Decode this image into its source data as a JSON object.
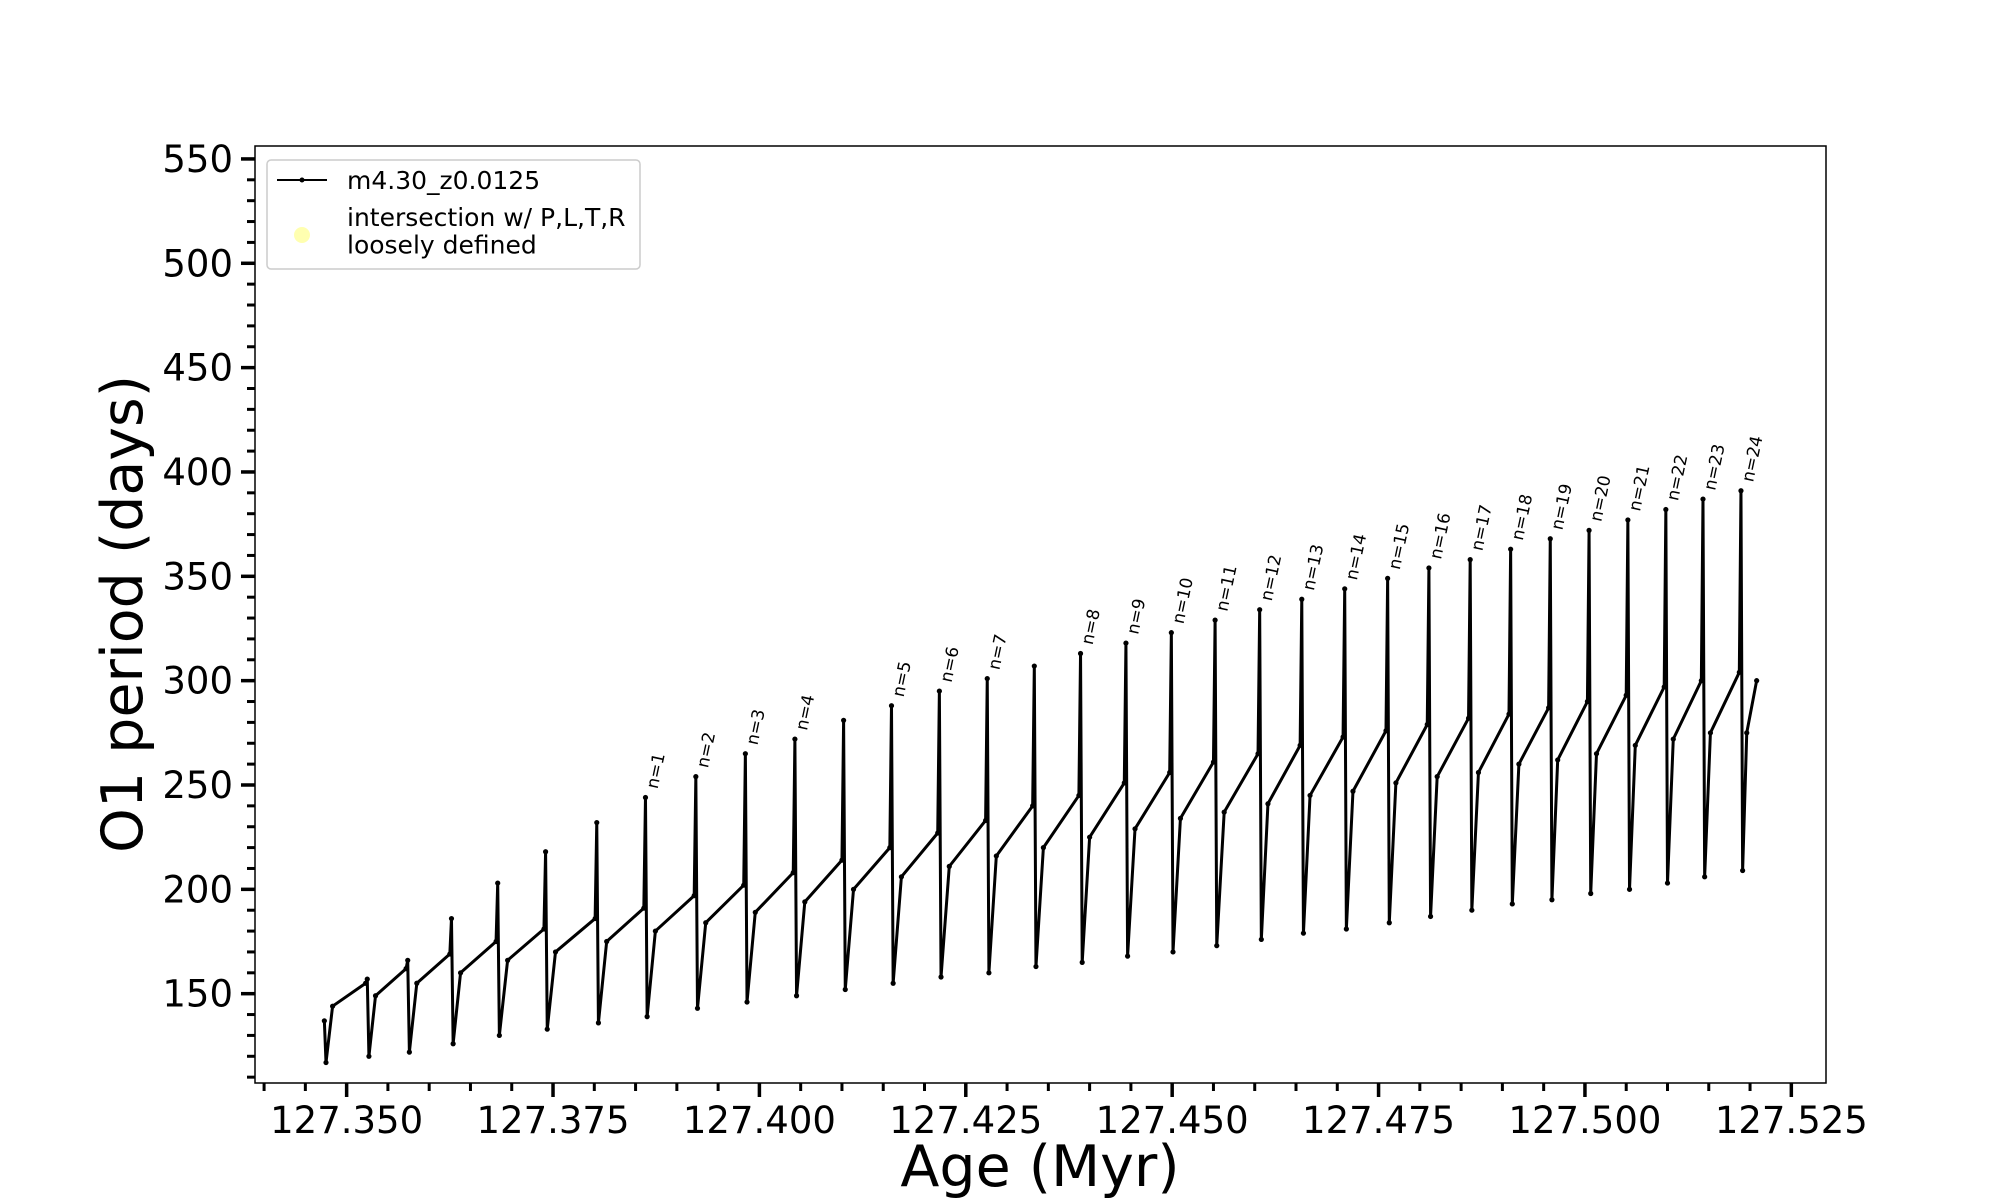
{
  "chart_data": {
    "type": "line",
    "xlabel": "Age (Myr)",
    "ylabel": "O1 period (days)",
    "xlim": [
      127.3389,
      127.5292
    ],
    "ylim": [
      107.2,
      556.2
    ],
    "xticks": [
      {
        "value": 127.35,
        "label": "127.350"
      },
      {
        "value": 127.375,
        "label": "127.375"
      },
      {
        "value": 127.4,
        "label": "127.400"
      },
      {
        "value": 127.425,
        "label": "127.425"
      },
      {
        "value": 127.45,
        "label": "127.450"
      },
      {
        "value": 127.475,
        "label": "127.475"
      },
      {
        "value": 127.5,
        "label": "127.500"
      },
      {
        "value": 127.525,
        "label": "127.525"
      }
    ],
    "yticks": [
      150,
      200,
      250,
      300,
      350,
      400,
      450,
      500,
      550
    ],
    "xminorticks": [
      127.34,
      127.345,
      127.355,
      127.36,
      127.365,
      127.37,
      127.38,
      127.385,
      127.39,
      127.395,
      127.405,
      127.41,
      127.415,
      127.42,
      127.43,
      127.435,
      127.44,
      127.445,
      127.455,
      127.46,
      127.465,
      127.47,
      127.48,
      127.485,
      127.49,
      127.495,
      127.505,
      127.51,
      127.515,
      127.52
    ],
    "yminorticks": [
      110,
      120,
      130,
      140,
      160,
      170,
      180,
      190,
      210,
      220,
      230,
      240,
      260,
      270,
      280,
      290,
      310,
      320,
      330,
      340,
      360,
      370,
      380,
      390,
      410,
      420,
      430,
      440,
      460,
      470,
      480,
      490,
      510,
      520,
      530,
      540
    ],
    "legend": "upper left",
    "series": [
      {
        "name": "m4.30_z0.0125",
        "color": "#000000",
        "marker": true,
        "x": [
          127.3473,
          127.3475,
          127.3483,
          127.3523,
          127.3525,
          127.3527,
          127.3535,
          127.3572,
          127.3574,
          127.3576,
          127.3585,
          127.3625,
          127.3627,
          127.3629,
          127.3638,
          127.3681,
          127.3683,
          127.3685,
          127.3695,
          127.3739,
          127.3741,
          127.3743,
          127.3753,
          127.3801,
          127.3803,
          127.3805,
          127.3815,
          127.386,
          127.3862,
          127.3864,
          127.3874,
          127.3921,
          127.3923,
          127.3925,
          127.3935,
          127.3981,
          127.3983,
          127.3985,
          127.3995,
          127.4041,
          127.4043,
          127.4045,
          127.4055,
          127.41,
          127.4102,
          127.4104,
          127.4114,
          127.4158,
          127.416,
          127.4162,
          127.4172,
          127.4216,
          127.4218,
          127.422,
          127.423,
          127.4274,
          127.4276,
          127.4278,
          127.4287,
          127.4331,
          127.4333,
          127.4335,
          127.4344,
          127.4387,
          127.4389,
          127.4391,
          127.44,
          127.4442,
          127.4444,
          127.4446,
          127.4455,
          127.4497,
          127.4499,
          127.4501,
          127.451,
          127.455,
          127.4552,
          127.4554,
          127.4563,
          127.4604,
          127.4606,
          127.4608,
          127.4616,
          127.4655,
          127.4657,
          127.4659,
          127.4667,
          127.4707,
          127.4709,
          127.4711,
          127.4719,
          127.4759,
          127.4761,
          127.4763,
          127.4771,
          127.4809,
          127.4811,
          127.4813,
          127.4821,
          127.4859,
          127.4861,
          127.4863,
          127.4871,
          127.4908,
          127.491,
          127.4912,
          127.492,
          127.4956,
          127.4958,
          127.496,
          127.4967,
          127.5003,
          127.5005,
          127.5007,
          127.5014,
          127.505,
          127.5052,
          127.5054,
          127.5061,
          127.5096,
          127.5098,
          127.51,
          127.5107,
          127.5141,
          127.5143,
          127.5145,
          127.5152,
          127.5187,
          127.5189,
          127.5191,
          127.5196,
          127.5208
        ],
        "values": [
          137,
          117,
          144,
          155,
          157,
          120,
          149,
          162,
          166,
          122,
          155,
          169,
          186,
          126,
          160,
          175,
          203,
          130,
          166,
          181,
          218,
          133,
          170,
          186,
          232,
          136,
          175,
          191,
          244,
          139,
          180,
          197,
          254,
          143,
          184,
          202,
          265,
          146,
          189,
          208,
          272,
          149,
          194,
          214,
          281,
          152,
          200,
          220,
          288,
          155,
          206,
          227,
          295,
          158,
          211,
          233,
          301,
          160,
          216,
          240,
          307,
          163,
          220,
          245,
          313,
          165,
          225,
          251,
          318,
          168,
          229,
          256,
          323,
          170,
          234,
          261,
          329,
          173,
          237,
          265,
          334,
          176,
          241,
          269,
          339,
          179,
          245,
          273,
          344,
          181,
          247,
          276,
          349,
          184,
          251,
          279,
          354,
          187,
          254,
          282,
          358,
          190,
          256,
          284,
          363,
          193,
          260,
          287,
          368,
          195,
          262,
          290,
          372,
          198,
          265,
          293,
          377,
          200,
          269,
          297,
          382,
          203,
          272,
          300,
          387,
          206,
          275,
          304,
          391,
          209,
          275,
          300
        ]
      },
      {
        "name": "intersection w/ P,L,T,R\nloosely defined",
        "color": "#ffffb0",
        "marker": true,
        "x": [],
        "values": []
      }
    ],
    "annotations": [
      {
        "text": "n=1",
        "x": 127.3862,
        "y": 244
      },
      {
        "text": "n=2",
        "x": 127.3923,
        "y": 254
      },
      {
        "text": "n=3",
        "x": 127.3983,
        "y": 265
      },
      {
        "text": "n=4",
        "x": 127.4043,
        "y": 272
      },
      {
        "text": "n=5",
        "x": 127.416,
        "y": 288
      },
      {
        "text": "n=6",
        "x": 127.4218,
        "y": 295
      },
      {
        "text": "n=7",
        "x": 127.4276,
        "y": 301
      },
      {
        "text": "n=8",
        "x": 127.4389,
        "y": 313
      },
      {
        "text": "n=9",
        "x": 127.4444,
        "y": 318
      },
      {
        "text": "n=10",
        "x": 127.4499,
        "y": 323
      },
      {
        "text": "n=11",
        "x": 127.4552,
        "y": 329
      },
      {
        "text": "n=12",
        "x": 127.4606,
        "y": 334
      },
      {
        "text": "n=13",
        "x": 127.4657,
        "y": 339
      },
      {
        "text": "n=14",
        "x": 127.4709,
        "y": 344
      },
      {
        "text": "n=15",
        "x": 127.4761,
        "y": 349
      },
      {
        "text": "n=16",
        "x": 127.4811,
        "y": 354
      },
      {
        "text": "n=17",
        "x": 127.4861,
        "y": 358
      },
      {
        "text": "n=18",
        "x": 127.491,
        "y": 363
      },
      {
        "text": "n=19",
        "x": 127.4958,
        "y": 368
      },
      {
        "text": "n=20",
        "x": 127.5005,
        "y": 372
      },
      {
        "text": "n=21",
        "x": 127.5052,
        "y": 377
      },
      {
        "text": "n=22",
        "x": 127.5098,
        "y": 382
      },
      {
        "text": "n=23",
        "x": 127.5143,
        "y": 387
      },
      {
        "text": "n=24",
        "x": 127.5189,
        "y": 391
      }
    ]
  }
}
